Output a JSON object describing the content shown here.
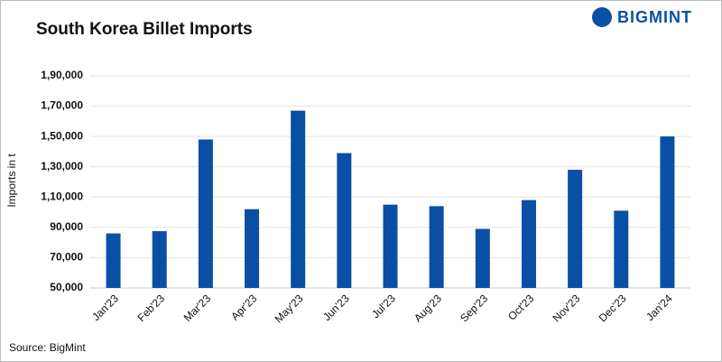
{
  "chart_data": {
    "type": "bar",
    "title": "South Korea Billet Imports",
    "logo": "BIGMINT",
    "source": "Source: BigMint",
    "y_label": "Imports in t",
    "categories": [
      "Jan'23",
      "Feb'23",
      "Mar'23",
      "Apr'23",
      "May'23",
      "Jun'23",
      "Jul'23",
      "Aug'23",
      "Sep'23",
      "Oct'23",
      "Nov'23",
      "Dec'23",
      "Jan'24"
    ],
    "values": [
      86000,
      87500,
      148000,
      102000,
      167000,
      139000,
      105000,
      104000,
      89000,
      108000,
      128000,
      101000,
      150000
    ],
    "color": "#0a4fa6",
    "ylim": [
      50000,
      190000
    ],
    "yticks": [
      {
        "value": 50000,
        "label": "50,000"
      },
      {
        "value": 70000,
        "label": "70,000"
      },
      {
        "value": 90000,
        "label": "90,000"
      },
      {
        "value": 110000,
        "label": "1,10,000"
      },
      {
        "value": 130000,
        "label": "1,30,000"
      },
      {
        "value": 150000,
        "label": "1,50,000"
      },
      {
        "value": 170000,
        "label": "1,70,000"
      },
      {
        "value": 190000,
        "label": "1,90,000"
      }
    ],
    "grid": true
  }
}
